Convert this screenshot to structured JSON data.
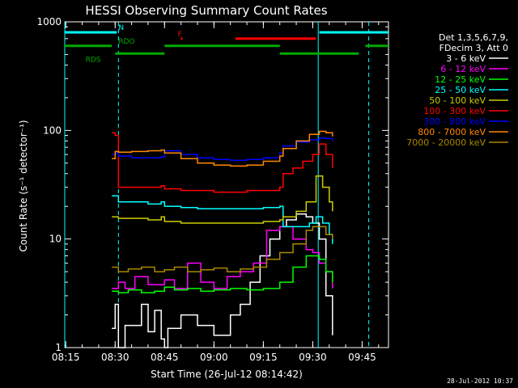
{
  "chart_data": {
    "type": "line",
    "title": "HESSI Observing Summary Count Rates",
    "xlabel": "Start Time (26-Jul-12 08:14:42)",
    "ylabel": "Count Rate (s⁻¹ detector⁻¹)",
    "x_unit": "UT time (HH:MM)",
    "xlim": [
      "08:14:42",
      "09:53:00"
    ],
    "ylim": [
      1,
      1000
    ],
    "yscale": "log",
    "x_ticks": [
      "08:15",
      "08:30",
      "08:45",
      "09:00",
      "09:15",
      "09:30",
      "09:45"
    ],
    "y_ticks": [
      {
        "value": 1,
        "label": "1"
      },
      {
        "value": 10,
        "label": "10"
      },
      {
        "value": 100,
        "label": "100"
      },
      {
        "value": 1000,
        "label": "1000"
      }
    ],
    "legend": {
      "position": "right",
      "header": [
        "Det 1,3,5,6,7,9,",
        "FDecim 3, Att 0"
      ]
    },
    "annotations": [
      {
        "label": "N",
        "color": "#00ffff"
      },
      {
        "label": "F",
        "color": "#ff0000"
      },
      {
        "label": "RDO",
        "color": "#00aa00"
      },
      {
        "label": "RDS",
        "color": "#00aa00"
      }
    ],
    "flag_bars": [
      {
        "name": "N",
        "color": "#00ffff",
        "y": 800,
        "segments": [
          [
            "08:14:42",
            "08:30:30"
          ],
          [
            "09:32:00",
            "09:53:00"
          ]
        ],
        "label_at": "08:31"
      },
      {
        "name": "F",
        "color": "#ff0000",
        "y": 700,
        "segments": [
          [
            "08:50:00",
            "08:50:30"
          ],
          [
            "09:06:30",
            "09:31:00"
          ]
        ],
        "label_at": "08:49"
      },
      {
        "name": "RDO",
        "color": "#00aa00",
        "y": 600,
        "segments": [
          [
            "08:14:42",
            "08:29:00"
          ],
          [
            "08:45:00",
            "09:20:00"
          ],
          [
            "09:46:00",
            "09:53:00"
          ]
        ],
        "label_at": "08:31"
      },
      {
        "name": "RDS",
        "color": "#00aa00",
        "y": 510,
        "segments": [
          [
            "08:30:00",
            "08:45:00"
          ],
          [
            "09:20:00",
            "09:44:00"
          ]
        ],
        "label_at": "08:21"
      }
    ],
    "markers_dashed": [
      "08:31:00",
      "09:47:00"
    ],
    "markers_solid": [
      "08:14:42",
      "09:31:40"
    ],
    "series": [
      {
        "name": "3 - 6 keV",
        "color": "#ffffff",
        "x": [
          "08:29",
          "08:30",
          "08:31",
          "08:33",
          "08:38",
          "08:40",
          "08:42",
          "08:44",
          "08:45",
          "08:46",
          "08:50",
          "08:55",
          "09:00",
          "09:05",
          "09:08",
          "09:11",
          "09:14",
          "09:17",
          "09:20",
          "09:22",
          "09:25",
          "09:28",
          "09:30",
          "09:32",
          "09:34",
          "09:36"
        ],
        "y": [
          1.5,
          2.5,
          1.0,
          1.6,
          2.5,
          1.4,
          2.2,
          1.2,
          1.0,
          1.5,
          2.0,
          1.6,
          1.3,
          2.0,
          2.5,
          4.0,
          7.0,
          10.0,
          13.0,
          15.0,
          17.0,
          16.0,
          14.0,
          10.0,
          3.0,
          1.3
        ]
      },
      {
        "name": "6 - 12 keV",
        "color": "#ff00ff",
        "x": [
          "08:29",
          "08:31",
          "08:33",
          "08:36",
          "08:40",
          "08:45",
          "08:48",
          "08:52",
          "08:56",
          "09:00",
          "09:04",
          "09:08",
          "09:12",
          "09:16",
          "09:20",
          "09:24",
          "09:28",
          "09:30",
          "09:32",
          "09:34",
          "09:36"
        ],
        "y": [
          3.5,
          4.0,
          3.5,
          4.5,
          3.8,
          4.2,
          3.5,
          6.0,
          4.0,
          3.5,
          4.5,
          5.0,
          6.0,
          12.0,
          13.0,
          10.0,
          8.0,
          7.5,
          6.0,
          5.0,
          3.5
        ]
      },
      {
        "name": "12 - 25 keV",
        "color": "#00ff00",
        "x": [
          "08:29",
          "08:31",
          "08:34",
          "08:38",
          "08:42",
          "08:45",
          "08:48",
          "08:52",
          "08:56",
          "09:00",
          "09:05",
          "09:10",
          "09:15",
          "09:20",
          "09:24",
          "09:28",
          "09:32",
          "09:34",
          "09:36"
        ],
        "y": [
          3.3,
          3.2,
          3.4,
          3.2,
          3.3,
          3.6,
          3.4,
          3.5,
          3.3,
          3.4,
          3.5,
          3.4,
          3.5,
          4.0,
          5.5,
          7.0,
          6.5,
          5.0,
          4.0
        ]
      },
      {
        "name": "25 - 50 keV",
        "color": "#00ffff",
        "x": [
          "08:29",
          "08:31",
          "08:36",
          "08:40",
          "08:44",
          "08:45",
          "08:50",
          "08:55",
          "09:00",
          "09:05",
          "09:10",
          "09:15",
          "09:20",
          "09:21",
          "09:25",
          "09:29",
          "09:31",
          "09:33",
          "09:35",
          "09:36"
        ],
        "y": [
          25,
          22,
          22,
          21,
          22,
          20,
          19.5,
          19,
          19,
          19,
          19,
          19.5,
          20,
          13,
          13,
          14,
          16,
          14,
          11,
          9
        ]
      },
      {
        "name": "50 - 100 keV",
        "color": "#cccc00",
        "x": [
          "08:29",
          "08:31",
          "08:36",
          "08:40",
          "08:44",
          "08:45",
          "08:50",
          "08:55",
          "09:00",
          "09:05",
          "09:10",
          "09:15",
          "09:20",
          "09:21",
          "09:25",
          "09:28",
          "09:31",
          "09:33",
          "09:35",
          "09:36"
        ],
        "y": [
          16,
          15.5,
          15.5,
          15,
          16,
          14.5,
          14,
          14,
          14,
          14,
          14,
          14.5,
          15,
          16,
          18,
          22,
          38,
          30,
          22,
          18
        ]
      },
      {
        "name": "100 - 300 keV",
        "color": "#ff0000",
        "x": [
          "08:29",
          "08:30",
          "08:31",
          "08:35",
          "08:40",
          "08:44",
          "08:45",
          "08:50",
          "08:55",
          "09:00",
          "09:05",
          "09:10",
          "09:15",
          "09:20",
          "09:21",
          "09:24",
          "09:27",
          "09:30",
          "09:32",
          "09:34",
          "09:36"
        ],
        "y": [
          95,
          90,
          30,
          30,
          30,
          31,
          29,
          28,
          28,
          27,
          27,
          28,
          28,
          30,
          40,
          45,
          52,
          60,
          75,
          60,
          45
        ]
      },
      {
        "name": "300 - 800 keV",
        "color": "#0000ff",
        "x": [
          "08:29",
          "08:30",
          "08:31",
          "08:35",
          "08:40",
          "08:44",
          "08:45",
          "08:50",
          "08:55",
          "09:00",
          "09:05",
          "09:10",
          "09:15",
          "09:20",
          "09:21",
          "09:25",
          "09:29",
          "09:32",
          "09:34",
          "09:36"
        ],
        "y": [
          60,
          62,
          58,
          56,
          56,
          57,
          65,
          60,
          56,
          54,
          53,
          54,
          56,
          62,
          72,
          78,
          82,
          85,
          84,
          80
        ]
      },
      {
        "name": "800 - 7000 keV",
        "color": "#ff8800",
        "x": [
          "08:29",
          "08:30",
          "08:31",
          "08:35",
          "08:40",
          "08:44",
          "08:45",
          "08:50",
          "08:55",
          "09:00",
          "09:05",
          "09:10",
          "09:15",
          "09:20",
          "09:21",
          "09:25",
          "09:29",
          "09:32",
          "09:34",
          "09:36"
        ],
        "y": [
          55,
          64,
          63,
          64,
          65,
          66,
          62,
          55,
          50,
          48,
          47,
          48,
          52,
          58,
          68,
          80,
          92,
          98,
          95,
          88
        ]
      },
      {
        "name": "7000 - 20000 keV",
        "color": "#aa8800",
        "x": [
          "08:29",
          "08:31",
          "08:34",
          "08:38",
          "08:42",
          "08:45",
          "08:48",
          "08:52",
          "08:56",
          "09:00",
          "09:04",
          "09:08",
          "09:12",
          "09:16",
          "09:20",
          "09:24",
          "09:28",
          "09:30",
          "09:32",
          "09:34",
          "09:36"
        ],
        "y": [
          5.5,
          5.0,
          5.3,
          5.5,
          5.0,
          5.2,
          5.5,
          5.0,
          5.2,
          5.4,
          5.0,
          5.3,
          5.5,
          6.5,
          7.5,
          9.0,
          12.0,
          13.0,
          13.0,
          11.0,
          10.0
        ]
      }
    ]
  },
  "footer": {
    "generated_stamp": "28-Jul-2012 10:37"
  }
}
